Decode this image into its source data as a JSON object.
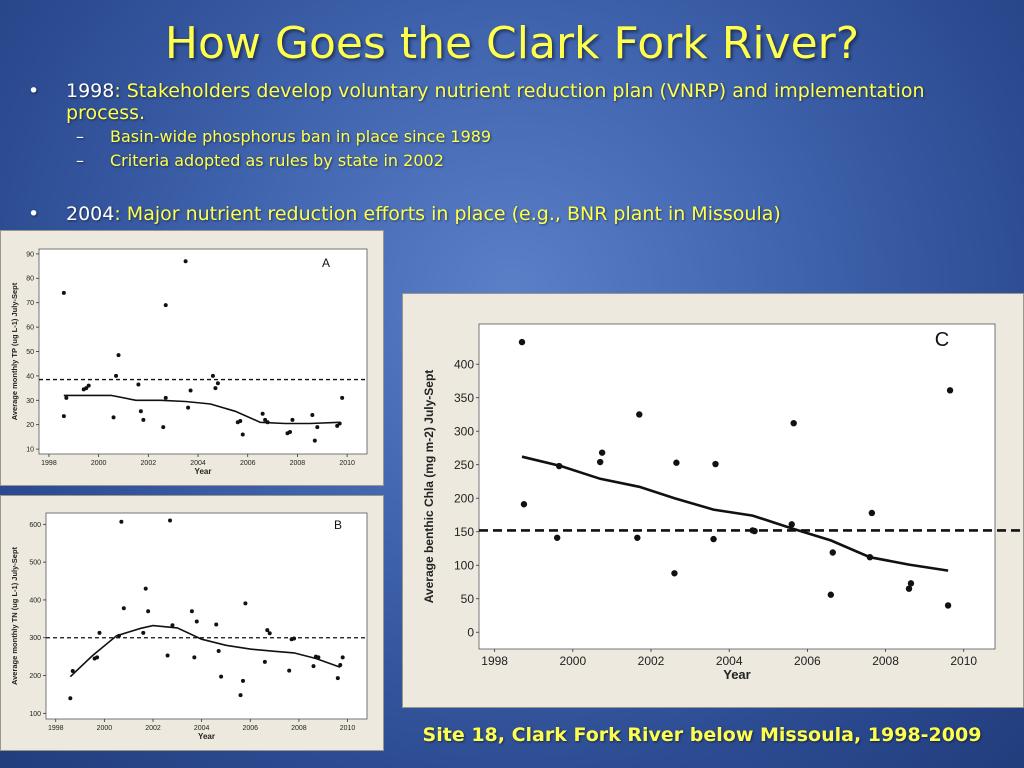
{
  "slide": {
    "title": "How Goes the Clark Fork River?",
    "bullet1_year": "1998",
    "bullet1_text": ": Stakeholders develop voluntary nutrient reduction plan (VNRP) and implementation process.",
    "sub1": "Basin-wide phosphorus ban in place since 1989",
    "sub2": "Criteria adopted as rules by state in 2002",
    "bullet2_year": "2004",
    "bullet2_text": ":  Major nutrient reduction efforts in place (e.g., BNR plant in Missoula)",
    "bullet_glyph": "•",
    "dash_glyph": "–",
    "caption": "Site 18, Clark Fork River below Missoula, 1998-2009"
  },
  "chart_data": [
    {
      "panel": "A",
      "type": "scatter",
      "ylabel": "Average monthly TP (ug L-1) July-Sept",
      "xlabel": "Year",
      "xlim": [
        1997.6,
        2010.8
      ],
      "ylim": [
        8,
        92
      ],
      "xticks": [
        1998,
        2000,
        2002,
        2004,
        2006,
        2008,
        2010
      ],
      "yticks": [
        10,
        20,
        30,
        40,
        50,
        60,
        70,
        80,
        90
      ],
      "threshold": 38.5,
      "points": [
        [
          1998.6,
          74
        ],
        [
          1998.6,
          23.5
        ],
        [
          1998.7,
          31
        ],
        [
          1999.4,
          34.5
        ],
        [
          1999.5,
          35
        ],
        [
          1999.6,
          36
        ],
        [
          2000.6,
          23
        ],
        [
          2000.7,
          40
        ],
        [
          2000.8,
          48.5
        ],
        [
          2001.6,
          36.5
        ],
        [
          2001.7,
          25.5
        ],
        [
          2001.8,
          22
        ],
        [
          2002.6,
          19
        ],
        [
          2002.7,
          69
        ],
        [
          2002.7,
          31
        ],
        [
          2003.5,
          87
        ],
        [
          2003.6,
          27
        ],
        [
          2003.7,
          34
        ],
        [
          2004.6,
          40
        ],
        [
          2004.7,
          35
        ],
        [
          2004.8,
          37
        ],
        [
          2005.6,
          21
        ],
        [
          2005.7,
          21.5
        ],
        [
          2005.8,
          16
        ],
        [
          2006.6,
          24.5
        ],
        [
          2006.7,
          22
        ],
        [
          2006.8,
          21
        ],
        [
          2007.6,
          16.5
        ],
        [
          2007.7,
          17
        ],
        [
          2007.8,
          22
        ],
        [
          2008.6,
          24
        ],
        [
          2008.7,
          13.5
        ],
        [
          2008.8,
          19
        ],
        [
          2009.6,
          19.5
        ],
        [
          2009.7,
          20.5
        ],
        [
          2009.8,
          31
        ]
      ],
      "smooth": [
        [
          1998.6,
          32
        ],
        [
          1999.5,
          32
        ],
        [
          2000.5,
          32
        ],
        [
          2001.5,
          30
        ],
        [
          2002.5,
          30
        ],
        [
          2003.5,
          29.5
        ],
        [
          2004.5,
          28.5
        ],
        [
          2005.5,
          25.5
        ],
        [
          2006.5,
          21
        ],
        [
          2007.5,
          20.5
        ],
        [
          2008.5,
          20.5
        ],
        [
          2009.7,
          21
        ]
      ]
    },
    {
      "panel": "B",
      "type": "scatter",
      "ylabel": "Average monthly TN (ug L-1) July-Sept",
      "xlabel": "Year",
      "xlim": [
        1997.6,
        2010.8
      ],
      "ylim": [
        85,
        630
      ],
      "xticks": [
        1998,
        2000,
        2002,
        2004,
        2006,
        2008,
        2010
      ],
      "yticks": [
        100,
        200,
        300,
        400,
        500,
        600
      ],
      "threshold": 300,
      "points": [
        [
          1998.6,
          140
        ],
        [
          1998.7,
          212
        ],
        [
          1999.6,
          245
        ],
        [
          1999.7,
          248
        ],
        [
          1999.8,
          313
        ],
        [
          2000.6,
          305
        ],
        [
          2000.7,
          607
        ],
        [
          2000.8,
          378
        ],
        [
          2001.6,
          313
        ],
        [
          2001.7,
          430
        ],
        [
          2001.8,
          370
        ],
        [
          2002.6,
          253
        ],
        [
          2002.7,
          610
        ],
        [
          2002.8,
          333
        ],
        [
          2003.6,
          370
        ],
        [
          2003.7,
          248
        ],
        [
          2003.8,
          343
        ],
        [
          2004.6,
          335
        ],
        [
          2004.7,
          265
        ],
        [
          2004.8,
          197
        ],
        [
          2005.6,
          148
        ],
        [
          2005.7,
          186
        ],
        [
          2005.8,
          391
        ],
        [
          2006.6,
          236
        ],
        [
          2006.7,
          320
        ],
        [
          2006.8,
          312
        ],
        [
          2007.6,
          213
        ],
        [
          2007.7,
          296
        ],
        [
          2007.8,
          298
        ],
        [
          2008.6,
          225
        ],
        [
          2008.7,
          250
        ],
        [
          2008.8,
          248
        ],
        [
          2009.6,
          193
        ],
        [
          2009.7,
          228
        ],
        [
          2009.8,
          248
        ]
      ],
      "smooth": [
        [
          1998.6,
          197
        ],
        [
          1999.5,
          252
        ],
        [
          2000.5,
          305
        ],
        [
          2001.5,
          325
        ],
        [
          2002.0,
          332
        ],
        [
          2003.0,
          326
        ],
        [
          2004.0,
          296
        ],
        [
          2005.0,
          280
        ],
        [
          2006.0,
          270
        ],
        [
          2007.0,
          264
        ],
        [
          2007.8,
          260
        ],
        [
          2008.7,
          245
        ],
        [
          2009.7,
          222
        ]
      ]
    },
    {
      "panel": "C",
      "type": "scatter",
      "ylabel": "Average benthic Chla  (mg m-2) July-Sept",
      "xlabel": "Year",
      "xlim": [
        1997.6,
        2010.8
      ],
      "ylim": [
        -25,
        460
      ],
      "xticks": [
        1998,
        2000,
        2002,
        2004,
        2006,
        2008,
        2010
      ],
      "yticks": [
        0,
        50,
        100,
        150,
        200,
        250,
        300,
        350,
        400
      ],
      "threshold": 152,
      "points": [
        [
          1998.7,
          433
        ],
        [
          1998.75,
          191
        ],
        [
          1999.6,
          141
        ],
        [
          1999.65,
          248
        ],
        [
          2000.7,
          254
        ],
        [
          2000.75,
          268
        ],
        [
          2001.65,
          141
        ],
        [
          2001.7,
          325
        ],
        [
          2002.6,
          88
        ],
        [
          2002.65,
          253
        ],
        [
          2003.6,
          139
        ],
        [
          2003.65,
          251
        ],
        [
          2004.6,
          152
        ],
        [
          2004.65,
          151
        ],
        [
          2005.6,
          161
        ],
        [
          2005.65,
          312
        ],
        [
          2006.6,
          56
        ],
        [
          2006.65,
          119
        ],
        [
          2007.6,
          112
        ],
        [
          2007.65,
          178
        ],
        [
          2008.6,
          65
        ],
        [
          2008.65,
          73
        ],
        [
          2009.6,
          40
        ],
        [
          2009.65,
          361
        ]
      ],
      "smooth": [
        [
          1998.7,
          262
        ],
        [
          1999.7,
          248
        ],
        [
          2000.7,
          229
        ],
        [
          2001.7,
          217
        ],
        [
          2002.6,
          200
        ],
        [
          2003.6,
          183
        ],
        [
          2004.6,
          174
        ],
        [
          2005.6,
          155
        ],
        [
          2006.6,
          137
        ],
        [
          2007.6,
          112
        ],
        [
          2008.6,
          101
        ],
        [
          2009.6,
          92
        ]
      ]
    }
  ]
}
